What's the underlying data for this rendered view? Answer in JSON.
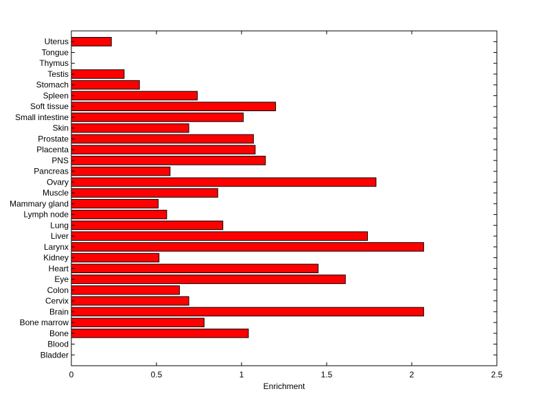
{
  "chart_data": {
    "type": "bar",
    "orientation": "horizontal",
    "title": "",
    "xlabel": "Enrichment",
    "ylabel": "",
    "xlim": [
      0,
      2.5
    ],
    "xticks": [
      0,
      0.5,
      1,
      1.5,
      2,
      2.5
    ],
    "xtick_labels": [
      "0",
      "0.5",
      "1",
      "1.5",
      "2",
      "2.5"
    ],
    "grid": false,
    "bar_color": "#ff0000",
    "edge_color": "#000000",
    "categories": [
      "Bladder",
      "Blood",
      "Bone",
      "Bone marrow",
      "Brain",
      "Cervix",
      "Colon",
      "Eye",
      "Heart",
      "Kidney",
      "Larynx",
      "Liver",
      "Lung",
      "Lymph node",
      "Mammary gland",
      "Muscle",
      "Ovary",
      "Pancreas",
      "PNS",
      "Placenta",
      "Prostate",
      "Skin",
      "Small intestine",
      "Soft tissue",
      "Spleen",
      "Stomach",
      "Testis",
      "Thymus",
      "Tongue",
      "Uterus"
    ],
    "values": [
      0,
      0,
      1.04,
      0.78,
      2.07,
      0.69,
      0.635,
      1.61,
      1.45,
      0.515,
      2.07,
      1.74,
      0.89,
      0.56,
      0.51,
      0.86,
      1.79,
      0.58,
      1.14,
      1.08,
      1.07,
      0.69,
      1.01,
      1.2,
      0.74,
      0.4,
      0.31,
      0,
      0,
      0.235
    ]
  }
}
